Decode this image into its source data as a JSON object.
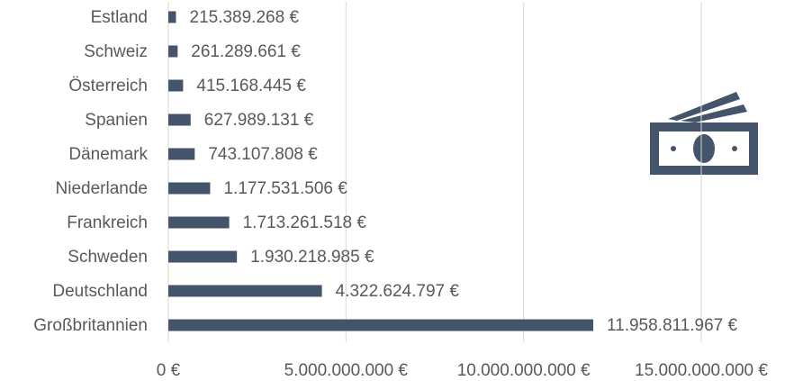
{
  "chart_data": {
    "type": "bar",
    "orientation": "horizontal",
    "categories": [
      "Estland",
      "Schweiz",
      "Österreich",
      "Spanien",
      "Dänemark",
      "Niederlande",
      "Frankreich",
      "Schweden",
      "Deutschland",
      "Großbritannien"
    ],
    "values": [
      215389268,
      261289661,
      415168445,
      627989131,
      743107808,
      1177531506,
      1713261518,
      1930218985,
      4322624797,
      11958811967
    ],
    "value_labels": [
      "215.389.268 €",
      "261.289.661 €",
      "415.168.445 €",
      "627.989.131 €",
      "743.107.808 €",
      "1.177.531.506 €",
      "1.713.261.518 €",
      "1.930.218.985 €",
      "4.322.624.797 €",
      "11.958.811.967 €"
    ],
    "color": "#44546a",
    "xlim": [
      0,
      15000000000
    ],
    "xticks": [
      {
        "value": 0,
        "label": "0 €"
      },
      {
        "value": 5000000000,
        "label": "5.000.000.000 €"
      },
      {
        "value": 10000000000,
        "label": "10.000.000.000 €"
      },
      {
        "value": 15000000000,
        "label": "15.000.000.000 €"
      }
    ],
    "grid": true
  }
}
